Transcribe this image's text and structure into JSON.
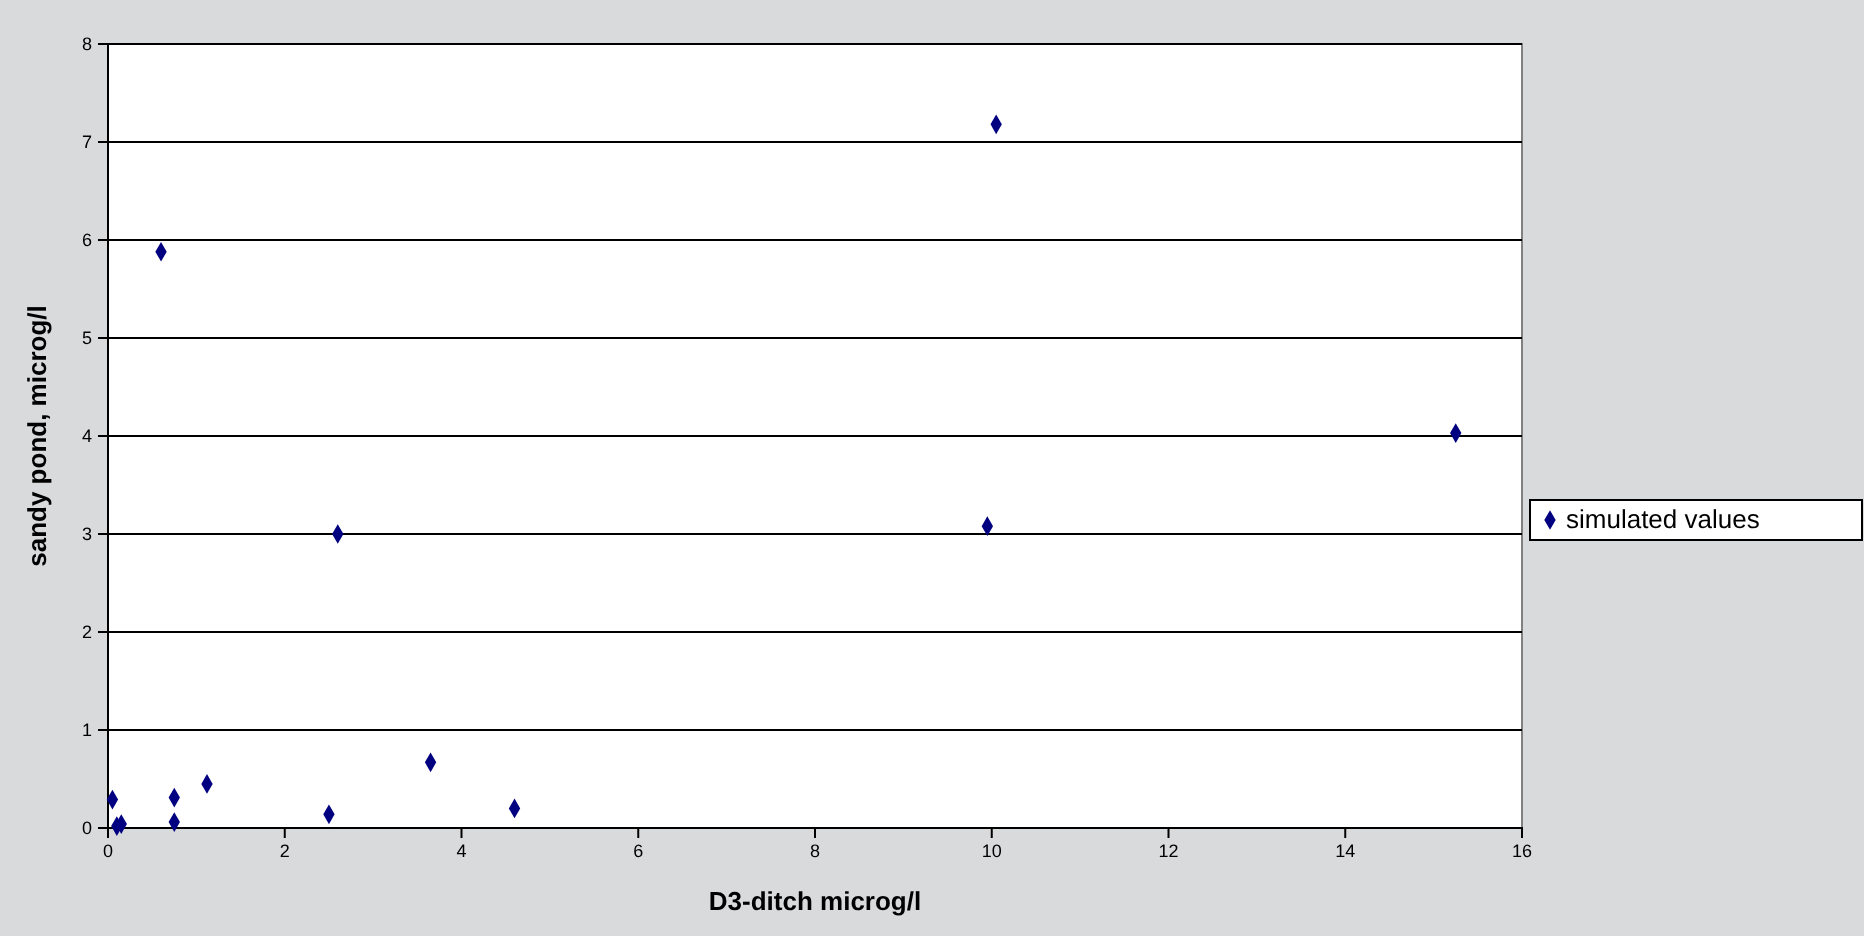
{
  "chart_data": {
    "type": "scatter",
    "xlabel": "D3-ditch microg/l",
    "ylabel": "sandy pond, microg/l",
    "x": [
      0.05,
      0.1,
      0.15,
      0.6,
      0.75,
      0.75,
      1.12,
      2.5,
      2.6,
      3.65,
      4.6,
      9.95,
      10.05,
      15.25
    ],
    "series": [
      {
        "name": "simulated values",
        "color": "#000080",
        "values": [
          0.29,
          0.02,
          0.04,
          5.88,
          0.31,
          0.06,
          0.45,
          0.14,
          3.0,
          0.67,
          0.2,
          3.08,
          7.18,
          4.03
        ]
      }
    ],
    "xlim": [
      0,
      16
    ],
    "xticks": [
      0,
      2,
      4,
      6,
      8,
      10,
      12,
      14,
      16
    ],
    "ylim": [
      0,
      8
    ],
    "yticks": [
      0,
      1,
      2,
      3,
      4,
      5,
      6,
      7,
      8
    ],
    "grid": "y",
    "legend": "right",
    "marker": "diamond"
  }
}
